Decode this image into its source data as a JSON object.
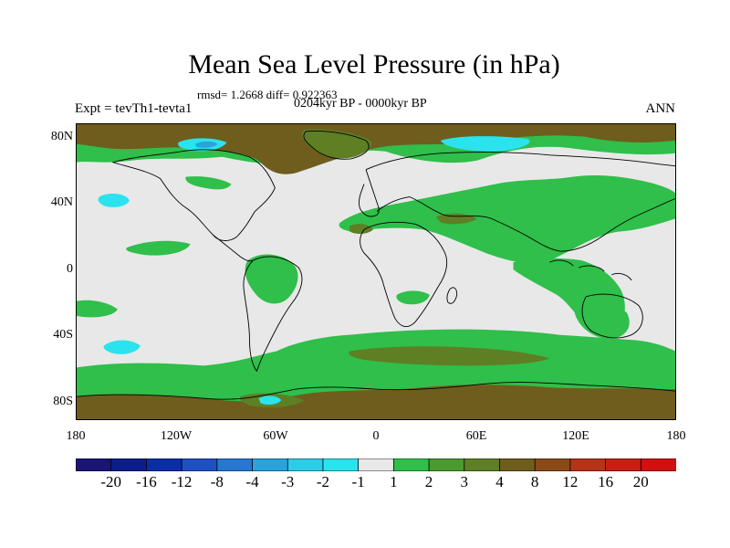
{
  "title": "Mean Sea Level Pressure (in hPa)",
  "stats": "rmsd= 1.2668 diff= 0.922363",
  "period": "0204kyr BP - 0000kyr BP",
  "expt": "Expt = tevTh1-tevta1",
  "season": "ANN",
  "axes": {
    "lat_labels": [
      "80N",
      "40N",
      "0",
      "40S",
      "80S"
    ],
    "lon_labels": [
      "180",
      "120W",
      "60W",
      "0",
      "60E",
      "120E",
      "180"
    ]
  },
  "colorbar": {
    "labels": [
      "-20",
      "-16",
      "-12",
      "-8",
      "-4",
      "-3",
      "-2",
      "-1",
      "1",
      "2",
      "3",
      "4",
      "8",
      "12",
      "16",
      "20"
    ],
    "colors": [
      "#1a1477",
      "#0d1d8c",
      "#0b2ea8",
      "#1f4fc4",
      "#2677d2",
      "#2aa2dc",
      "#2ccde8",
      "#2ae3ee",
      "#e8e8e8",
      "#2fbf4a",
      "#4a9a2e",
      "#5e7f24",
      "#6e5d1d",
      "#8a4a18",
      "#b53317",
      "#c81e14",
      "#d21010"
    ]
  },
  "map_colors": {
    "neutral": "#e8e8e8",
    "green": "#2fbf4a",
    "olive": "#5e7f24",
    "brown": "#6e5d1d",
    "cyan": "#2ae3ee",
    "lightblue": "#2aa2dc",
    "coast": "#000000"
  }
}
